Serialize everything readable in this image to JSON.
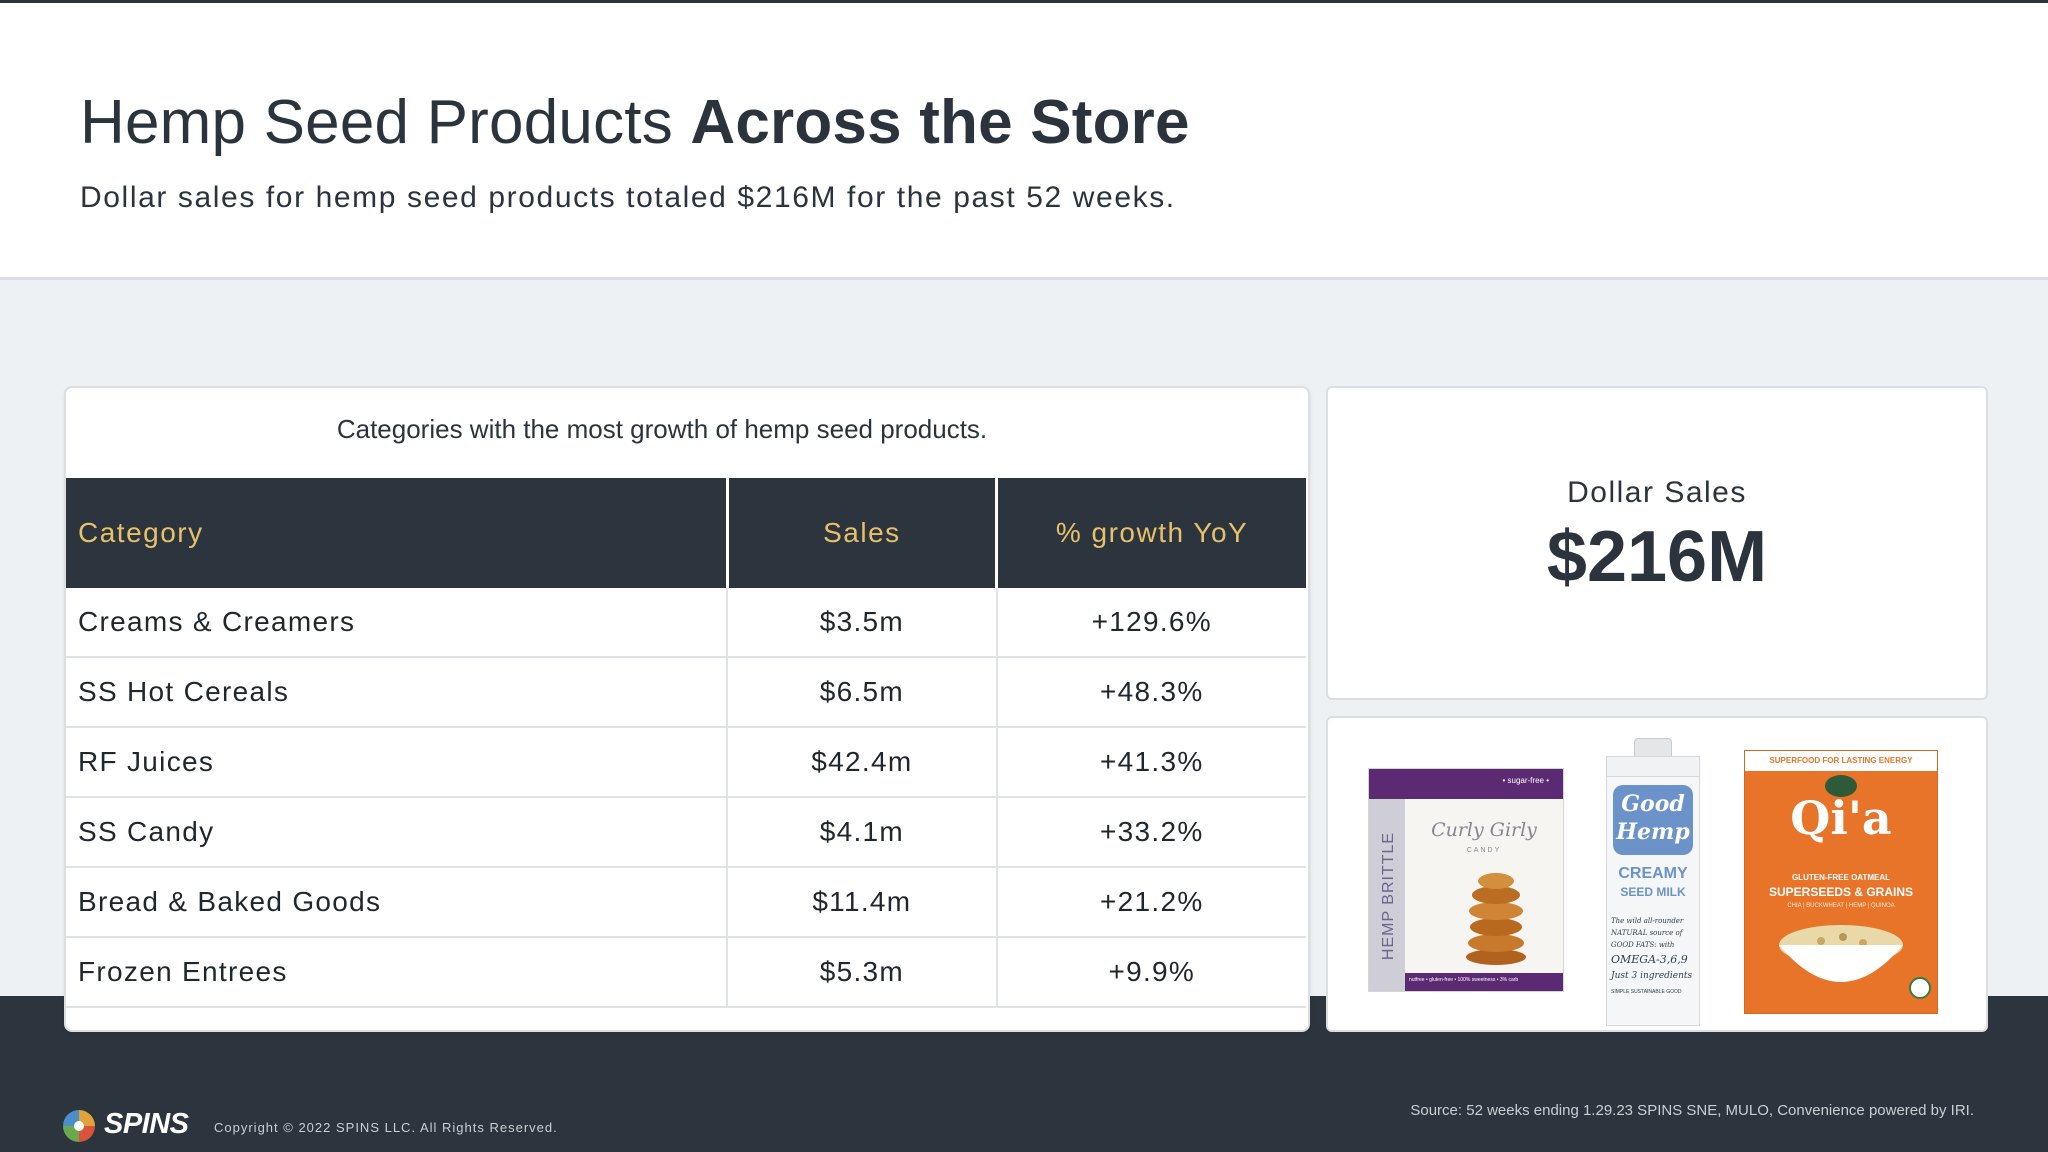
{
  "header": {
    "title_regular": "Hemp Seed Products ",
    "title_bold": "Across the Store",
    "subtitle": "Dollar sales for hemp seed products totaled $216M for the past 52 weeks."
  },
  "table": {
    "caption": "Categories with the most growth of hemp seed products.",
    "columns": [
      "Category",
      "Sales",
      "% growth YoY"
    ],
    "rows": [
      {
        "category": "Creams & Creamers",
        "sales": "$3.5m",
        "growth": "+129.6%"
      },
      {
        "category": "SS Hot Cereals",
        "sales": "$6.5m",
        "growth": "+48.3%"
      },
      {
        "category": "RF Juices",
        "sales": "$42.4m",
        "growth": "+41.3%"
      },
      {
        "category": "SS Candy",
        "sales": "$4.1m",
        "growth": "+33.2%"
      },
      {
        "category": "Bread & Baked Goods",
        "sales": "$11.4m",
        "growth": "+21.2%"
      },
      {
        "category": "Frozen Entrees",
        "sales": "$5.3m",
        "growth": "+9.9%"
      }
    ]
  },
  "sales_card": {
    "label": "Dollar Sales",
    "value": "$216M"
  },
  "products": {
    "brittle": {
      "tag": "• sugar-free •",
      "brand": "Curly Girly",
      "sub": "CANDY",
      "side": "HEMP BRITTLE",
      "foot": "nutfree • gluten-free • 100% sweetness • 3% carb"
    },
    "milk": {
      "brand_line1": "Good",
      "brand_line2": "Hemp",
      "name_line1": "CREAMY",
      "name_line2": "SEED MILK",
      "script1": "The wild all-rounder",
      "script2": "NATURAL source of",
      "script3": "GOOD FATS: with",
      "script4": "OMEGA-3,6,9",
      "script5": "Just 3 ingredients",
      "script6": "SIMPLE SUSTAINABLE GOOD"
    },
    "cereal": {
      "banner": "SUPERFOOD FOR LASTING ENERGY",
      "brand": "Qi'a",
      "tag1": "GLUTEN-FREE OATMEAL",
      "tag2": "SUPERSEEDS & GRAINS",
      "tag3": "CHIA | BUCKWHEAT | HEMP | QUINOA"
    }
  },
  "footer": {
    "logo": "SPINS",
    "copyright": "Copyright  © 2022  SPINS  LLC. All Rights  Reserved.",
    "source": "Source: 52 weeks ending 1.29.23 SPINS SNE, MULO, Convenience  powered by IRI."
  },
  "colors": {
    "dark": "#2c353d",
    "accent": "#e8c06a",
    "light_band": "#eef1f3",
    "brittle_purple": "#5b2a72",
    "cereal_orange": "#e8742a",
    "milk_blue": "#6b93c9"
  }
}
